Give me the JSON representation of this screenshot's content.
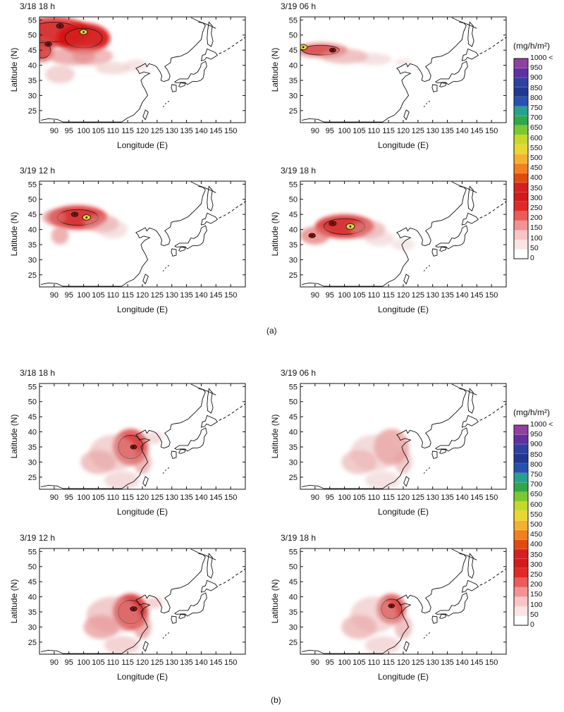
{
  "figures": [
    {
      "caption": "(a)",
      "panels": [
        {
          "title": "3/18 18 h",
          "plumes": [
            [
              90,
              51,
              12,
              5,
              0.9
            ],
            [
              100,
              49,
              9,
              5,
              1.0
            ],
            [
              86,
              45,
              4,
              4,
              0.7
            ],
            [
              96,
              43,
              8,
              3,
              0.45
            ],
            [
              103,
              43,
              7,
              3,
              0.4
            ],
            [
              92,
              37,
              5,
              3,
              0.25
            ],
            [
              110,
              39,
              6,
              2,
              0.18
            ],
            [
              118,
              40,
              4,
              2,
              0.12
            ]
          ],
          "hot": [
            [
              100,
              51,
              0.8
            ],
            [
              92,
              53,
              0.7
            ],
            [
              88,
              47,
              0.6
            ]
          ]
        },
        {
          "title": "3/19 06 h",
          "plumes": [
            [
              92,
              45,
              9,
              2.5,
              0.6
            ],
            [
              100,
              43,
              8,
              2.5,
              0.35
            ],
            [
              110,
              42,
              6,
              2,
              0.15
            ],
            [
              120,
              41,
              3,
              1,
              0.12
            ]
          ],
          "hot": [
            [
              86,
              46,
              0.9
            ],
            [
              96,
              45,
              0.5
            ]
          ]
        },
        {
          "title": "3/19 12 h",
          "plumes": [
            [
              98,
              44,
              10,
              4,
              0.9
            ],
            [
              90,
              44,
              4,
              2.5,
              0.5
            ],
            [
              106,
              42,
              6,
              3,
              0.35
            ],
            [
              92,
              38,
              3,
              3,
              0.45
            ],
            [
              110,
              40,
              5,
              3,
              0.15
            ]
          ],
          "hot": [
            [
              101,
              44,
              0.9
            ],
            [
              97,
              45,
              0.6
            ]
          ]
        },
        {
          "title": "3/19 18 h",
          "plumes": [
            [
              100,
              41,
              10,
              4,
              0.9
            ],
            [
              108,
              40,
              6,
              3,
              0.35
            ],
            [
              90,
              38,
              5,
              3,
              0.55
            ],
            [
              112,
              37,
              5,
              2.5,
              0.15
            ],
            [
              120,
              35,
              4,
              2,
              0.1
            ]
          ],
          "hot": [
            [
              102,
              41,
              1.0
            ],
            [
              96,
              42,
              0.7
            ],
            [
              89,
              38,
              0.6
            ]
          ]
        }
      ],
      "colorbar": {
        "unit": "(mg/h/m²)",
        "ticks": [
          "1000 <",
          "950",
          "900",
          "850",
          "800",
          "750",
          "700",
          "650",
          "600",
          "550",
          "500",
          "450",
          "400",
          "350",
          "300",
          "250",
          "200",
          "150",
          "100",
          "50",
          "0"
        ]
      }
    },
    {
      "caption": "(b)",
      "panels": [
        {
          "title": "3/18 18 h",
          "plumes": [
            [
              116,
              35,
              6,
              6,
              0.8
            ],
            [
              105,
              30,
              6,
              4,
              0.35
            ],
            [
              110,
              33,
              8,
              6,
              0.25
            ],
            [
              120,
              30,
              3,
              4,
              0.4
            ],
            [
              113,
              24,
              6,
              3,
              0.2
            ],
            [
              124,
              38,
              3,
              2,
              0.2
            ]
          ],
          "hot": [
            [
              117,
              35,
              0.5
            ]
          ]
        },
        {
          "title": "3/19 06 h",
          "plumes": [
            [
              116,
              35,
              6,
              6,
              0.45
            ],
            [
              105,
              30,
              6,
              4,
              0.3
            ],
            [
              110,
              33,
              8,
              6,
              0.2
            ],
            [
              120,
              30,
              3,
              4,
              0.3
            ],
            [
              113,
              24,
              6,
              3,
              0.15
            ]
          ],
          "hot": []
        },
        {
          "title": "3/19 12 h",
          "plumes": [
            [
              116,
              35,
              6,
              6,
              0.9
            ],
            [
              106,
              30,
              6,
              4,
              0.45
            ],
            [
              110,
              34,
              9,
              6,
              0.3
            ],
            [
              120,
              30,
              3,
              4,
              0.45
            ],
            [
              113,
              24,
              6,
              3,
              0.25
            ],
            [
              124,
              38,
              3,
              2,
              0.25
            ]
          ],
          "hot": [
            [
              117,
              36,
              0.6
            ]
          ]
        },
        {
          "title": "3/19 18 h",
          "plumes": [
            [
              116,
              36,
              5,
              5,
              0.75
            ],
            [
              105,
              30,
              6,
              4,
              0.35
            ],
            [
              110,
              34,
              8,
              6,
              0.22
            ],
            [
              120,
              30,
              3,
              4,
              0.35
            ],
            [
              113,
              24,
              6,
              3,
              0.2
            ]
          ],
          "hot": [
            [
              116,
              37,
              0.45
            ]
          ]
        }
      ],
      "colorbar": {
        "unit": "(mg/h/m²)",
        "ticks": [
          "1000 <",
          "950",
          "900",
          "850",
          "800",
          "750",
          "700",
          "650",
          "600",
          "550",
          "500",
          "450",
          "400",
          "350",
          "300",
          "250",
          "200",
          "150",
          "100",
          "50",
          "0"
        ]
      }
    }
  ],
  "axes": {
    "xlabel": "Longitude (E)",
    "ylabel": "Latitude (N)",
    "xticks": [
      "90",
      "95",
      "100",
      "105",
      "110",
      "115",
      "120",
      "125",
      "130",
      "135",
      "140",
      "145",
      "150"
    ],
    "yticks": [
      "25",
      "30",
      "35",
      "40",
      "45",
      "50",
      "55"
    ],
    "xlim": [
      85,
      155
    ],
    "ylim": [
      21,
      56
    ]
  },
  "colors": {
    "scale": [
      "#ffffff",
      "#fde4e4",
      "#f9c4c4",
      "#f29393",
      "#ea5c5c",
      "#e02a2a",
      "#d41a1a",
      "#d42020",
      "#e04a10",
      "#f08020",
      "#f4b030",
      "#e8d830",
      "#c8d828",
      "#7cc830",
      "#30a848",
      "#28a090",
      "#2850b0",
      "#203890",
      "#3040a0",
      "#6030a0",
      "#9040a0"
    ]
  }
}
